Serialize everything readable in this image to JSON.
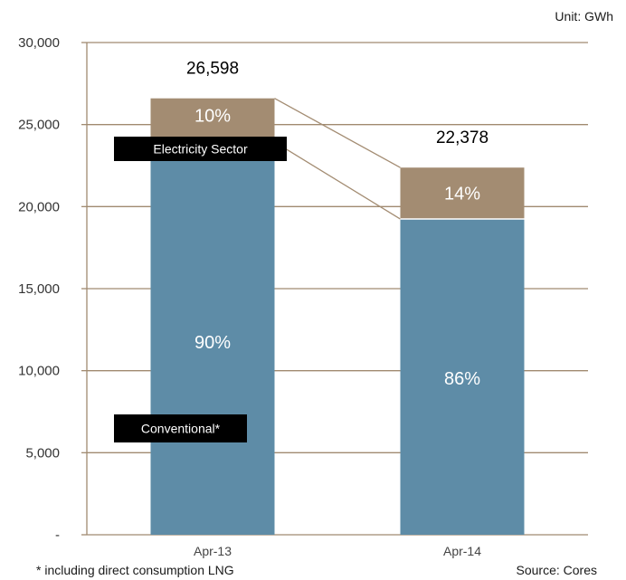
{
  "unit_label": "Unit: GWh",
  "footnote": "* including direct consumption LNG",
  "source": "Source: Cores",
  "colors": {
    "conventional": "#5e8ca7",
    "electricity": "#a38c72",
    "axis": "#a08a70",
    "label_box": "#000000",
    "segment_text": "#ffffff"
  },
  "chart_data": {
    "type": "bar",
    "stacked": true,
    "categories": [
      "Apr-13",
      "Apr-14"
    ],
    "series": [
      {
        "name": "Conventional*",
        "values": [
          23938,
          19245
        ],
        "percent_labels": [
          "90%",
          "86%"
        ]
      },
      {
        "name": "Electricity Sector",
        "values": [
          2660,
          3133
        ],
        "percent_labels": [
          "10%",
          "14%"
        ]
      }
    ],
    "totals": [
      26598,
      22378
    ],
    "total_labels": [
      "26,598",
      "22,378"
    ],
    "y_ticks": [
      0,
      5000,
      10000,
      15000,
      20000,
      25000,
      30000
    ],
    "y_tick_labels": [
      "-",
      "5,000",
      "10,000",
      "15,000",
      "20,000",
      "25,000",
      "30,000"
    ],
    "ylim": [
      0,
      30000
    ],
    "grid": true,
    "xlabel": "",
    "ylabel": ""
  }
}
